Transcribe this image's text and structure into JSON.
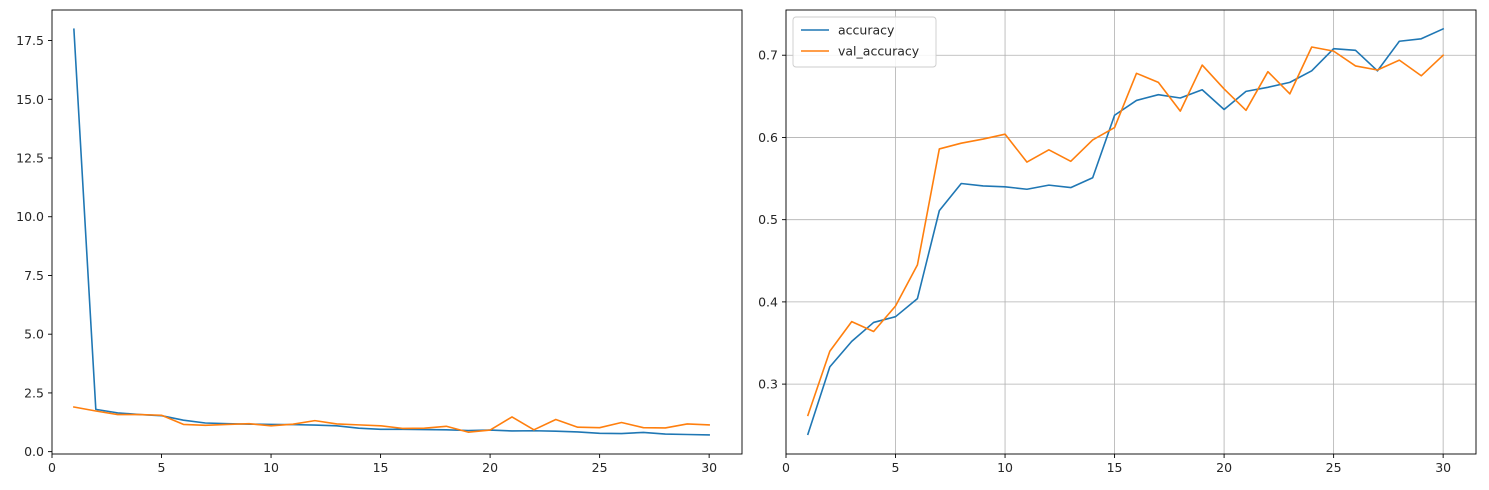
{
  "chart_data": [
    {
      "type": "line",
      "title": "",
      "xlabel": "",
      "ylabel": "",
      "xlim": [
        0,
        31.5
      ],
      "ylim": [
        -0.1,
        18.8
      ],
      "xticks": [
        0,
        5,
        10,
        15,
        20,
        25,
        30
      ],
      "yticks": [
        0.0,
        2.5,
        5.0,
        7.5,
        10.0,
        12.5,
        15.0,
        17.5
      ],
      "ytick_labels": [
        "0.0",
        "2.5",
        "5.0",
        "7.5",
        "10.0",
        "12.5",
        "15.0",
        "17.5"
      ],
      "grid": false,
      "legend": null,
      "x": [
        1,
        2,
        3,
        4,
        5,
        6,
        7,
        8,
        9,
        10,
        11,
        12,
        13,
        14,
        15,
        16,
        17,
        18,
        19,
        20,
        21,
        22,
        23,
        24,
        25,
        26,
        27,
        28,
        29,
        30
      ],
      "series": [
        {
          "color": "#1f77b4",
          "values": [
            17.98,
            1.8,
            1.65,
            1.58,
            1.53,
            1.34,
            1.22,
            1.19,
            1.17,
            1.16,
            1.15,
            1.13,
            1.1,
            1.0,
            0.95,
            0.95,
            0.94,
            0.93,
            0.9,
            0.92,
            0.88,
            0.89,
            0.87,
            0.84,
            0.78,
            0.77,
            0.82,
            0.75,
            0.73,
            0.71
          ]
        },
        {
          "color": "#ff7f0e",
          "values": [
            1.9,
            1.73,
            1.58,
            1.58,
            1.55,
            1.16,
            1.12,
            1.16,
            1.19,
            1.1,
            1.17,
            1.32,
            1.18,
            1.14,
            1.1,
            0.99,
            1.0,
            1.08,
            0.83,
            0.92,
            1.48,
            0.93,
            1.37,
            1.04,
            1.02,
            1.24,
            1.02,
            1.01,
            1.18,
            1.14
          ]
        }
      ]
    },
    {
      "type": "line",
      "title": "",
      "xlabel": "",
      "ylabel": "",
      "xlim": [
        0,
        31.5
      ],
      "ylim": [
        0.215,
        0.755
      ],
      "xticks": [
        0,
        5,
        10,
        15,
        20,
        25,
        30
      ],
      "yticks": [
        0.3,
        0.4,
        0.5,
        0.6,
        0.7
      ],
      "ytick_labels": [
        "0.3",
        "0.4",
        "0.5",
        "0.6",
        "0.7"
      ],
      "grid": true,
      "legend": "top-left",
      "x": [
        1,
        2,
        3,
        4,
        5,
        6,
        7,
        8,
        9,
        10,
        11,
        12,
        13,
        14,
        15,
        16,
        17,
        18,
        19,
        20,
        21,
        22,
        23,
        24,
        25,
        26,
        27,
        28,
        29,
        30
      ],
      "series": [
        {
          "name": "accuracy",
          "color": "#1f77b4",
          "values": [
            0.239,
            0.321,
            0.352,
            0.375,
            0.382,
            0.404,
            0.511,
            0.544,
            0.541,
            0.54,
            0.537,
            0.542,
            0.539,
            0.551,
            0.627,
            0.645,
            0.652,
            0.648,
            0.658,
            0.634,
            0.656,
            0.661,
            0.667,
            0.681,
            0.708,
            0.706,
            0.681,
            0.717,
            0.72,
            0.732
          ]
        },
        {
          "name": "val_accuracy",
          "color": "#ff7f0e",
          "values": [
            0.262,
            0.34,
            0.376,
            0.364,
            0.395,
            0.445,
            0.586,
            0.593,
            0.598,
            0.604,
            0.57,
            0.585,
            0.571,
            0.597,
            0.612,
            0.678,
            0.667,
            0.632,
            0.688,
            0.659,
            0.633,
            0.68,
            0.653,
            0.71,
            0.705,
            0.687,
            0.682,
            0.694,
            0.675,
            0.7
          ]
        }
      ]
    }
  ]
}
